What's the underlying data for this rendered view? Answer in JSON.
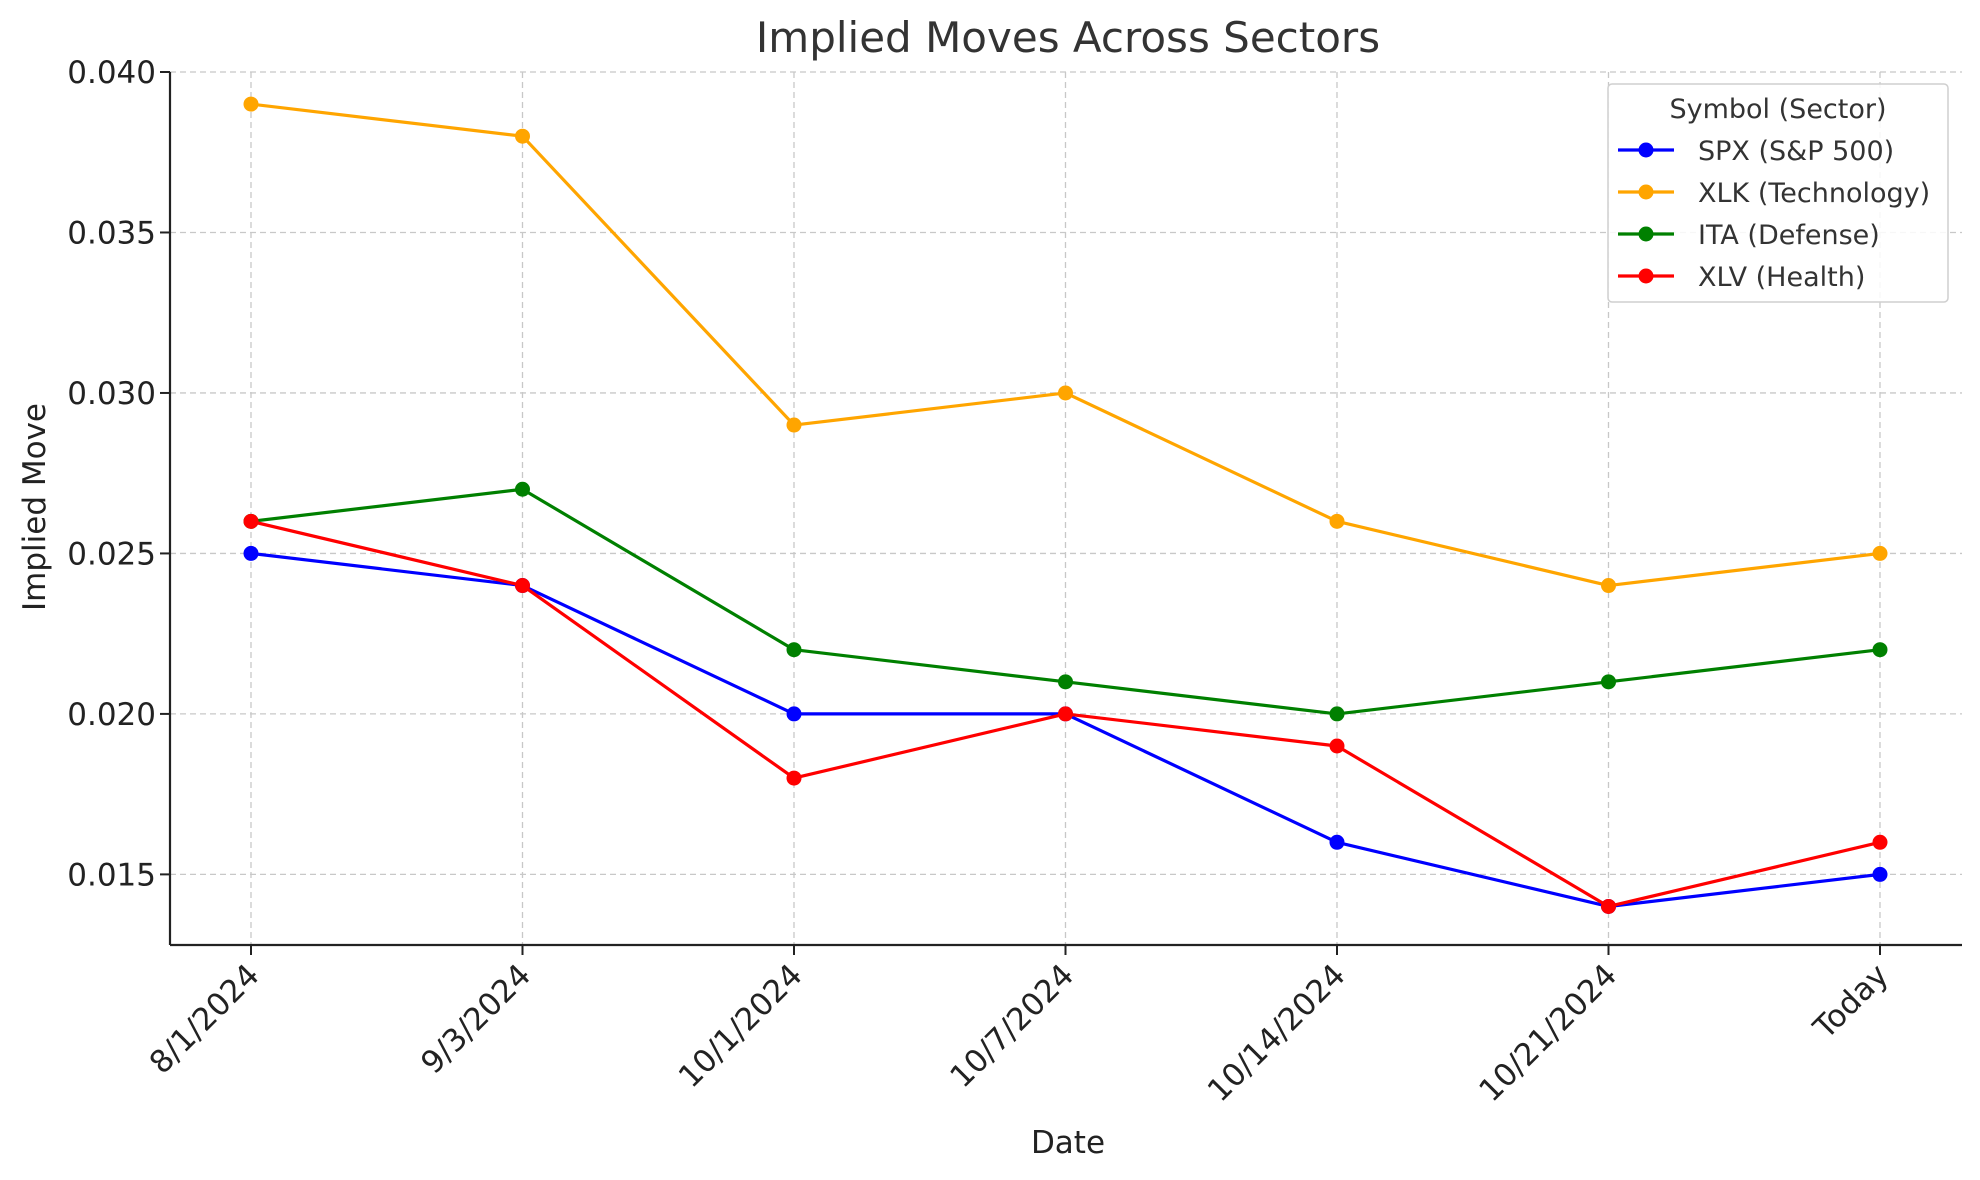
{
  "chart_data": {
    "type": "line",
    "title": "Implied Moves Across Sectors",
    "xlabel": "Date",
    "ylabel": "Implied Move",
    "categories": [
      "8/1/2024",
      "9/3/2024",
      "10/1/2024",
      "10/7/2024",
      "10/14/2024",
      "10/21/2024",
      "Today"
    ],
    "ylim": [
      0.0128,
      0.04
    ],
    "yticks": [
      "0.015",
      "0.020",
      "0.025",
      "0.030",
      "0.035",
      "0.040"
    ],
    "grid": true,
    "legend": {
      "title": "Symbol (Sector)",
      "position": "top-right"
    },
    "series": [
      {
        "name": "SPX (S&P 500)",
        "color": "#0000ff",
        "values": [
          0.025,
          0.024,
          0.02,
          0.02,
          0.016,
          0.014,
          0.015
        ]
      },
      {
        "name": "XLK (Technology)",
        "color": "#ffa500",
        "values": [
          0.039,
          0.038,
          0.029,
          0.03,
          0.026,
          0.024,
          0.025
        ]
      },
      {
        "name": "ITA (Defense)",
        "color": "#008000",
        "values": [
          0.026,
          0.027,
          0.022,
          0.021,
          0.02,
          0.021,
          0.022
        ]
      },
      {
        "name": "XLV (Health)",
        "color": "#ff0000",
        "values": [
          0.026,
          0.024,
          0.018,
          0.02,
          0.019,
          0.014,
          0.016
        ]
      }
    ]
  }
}
